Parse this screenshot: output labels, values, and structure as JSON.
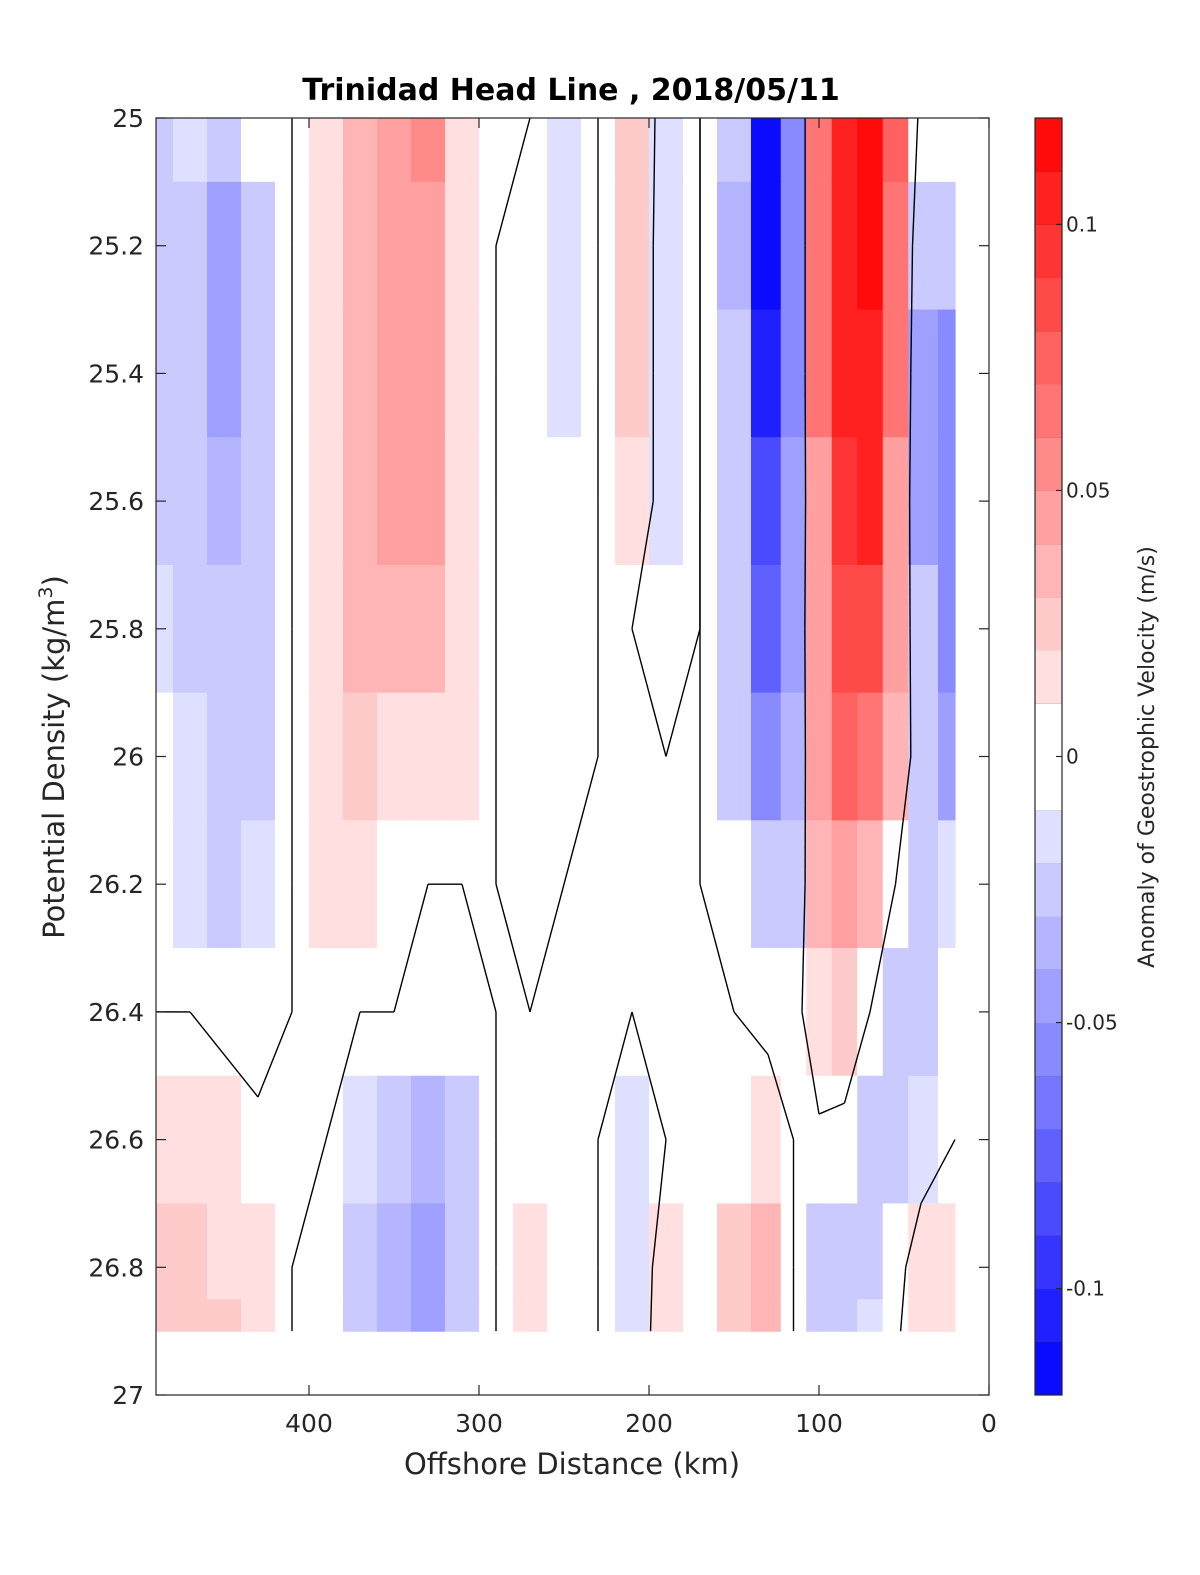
{
  "chart_data": {
    "type": "heatmap",
    "subtype": "filled-contour",
    "title": "Trinidad Head Line , 2018/05/11",
    "xlabel": "Offshore Distance (km)",
    "ylabel_base": "Potential Density (kg/m",
    "ylabel_sup": "3",
    "ylabel_end": ")",
    "colorbar_label": "Anomaly of Geostrophic Velocity (m/s)",
    "xlim": [
      490,
      0
    ],
    "x_reversed": true,
    "ylim": [
      25,
      27
    ],
    "y_reversed": true,
    "x_ticks": [
      {
        "value": 400,
        "label": "400"
      },
      {
        "value": 300,
        "label": "300"
      },
      {
        "value": 200,
        "label": "200"
      },
      {
        "value": 100,
        "label": "100"
      },
      {
        "value": 0,
        "label": "0"
      }
    ],
    "y_ticks": [
      {
        "value": 25,
        "label": "25"
      },
      {
        "value": 25.2,
        "label": "25.2"
      },
      {
        "value": 25.4,
        "label": "25.4"
      },
      {
        "value": 25.6,
        "label": "25.6"
      },
      {
        "value": 25.8,
        "label": "25.8"
      },
      {
        "value": 26,
        "label": "26"
      },
      {
        "value": 26.2,
        "label": "26.2"
      },
      {
        "value": 26.4,
        "label": "26.4"
      },
      {
        "value": 26.6,
        "label": "26.6"
      },
      {
        "value": 26.8,
        "label": "26.8"
      },
      {
        "value": 27,
        "label": "27"
      }
    ],
    "clim": [
      -0.12,
      0.12
    ],
    "colorbar_ticks": [
      {
        "value": 0.1,
        "label": "0.1"
      },
      {
        "value": 0.05,
        "label": "0.05"
      },
      {
        "value": 0,
        "label": "0"
      },
      {
        "value": -0.05,
        "label": "-0.05"
      },
      {
        "value": -0.1,
        "label": "-0.1"
      }
    ],
    "colormap": "blue-white-red",
    "color_negative": "#0000ff",
    "color_zero": "#ffffff",
    "color_positive": "#ff0000",
    "contour_line_color": "#000000",
    "contour_line_level": 0,
    "data_bottom_density": 26.9,
    "data_x_range": [
      490,
      20
    ],
    "grid_x_km": [
      490,
      470,
      450,
      430,
      410,
      390,
      370,
      350,
      330,
      310,
      290,
      270,
      250,
      230,
      210,
      190,
      170,
      150,
      130,
      115,
      100,
      85,
      70,
      55,
      40,
      20
    ],
    "grid_y_density": [
      25.0,
      25.2,
      25.4,
      25.6,
      25.8,
      26.0,
      26.2,
      26.4,
      26.6,
      26.8,
      26.9
    ],
    "grid_values": [
      [
        -0.03,
        -0.015,
        -0.02,
        -0.01,
        0.0,
        0.02,
        0.035,
        0.045,
        0.055,
        0.02,
        0.0,
        0.0,
        -0.012,
        0.0,
        0.025,
        -0.012,
        0.0,
        -0.03,
        -0.11,
        -0.05,
        0.06,
        0.11,
        0.115,
        0.07,
        -0.01,
        0.0
      ],
      [
        -0.02,
        -0.02,
        -0.04,
        -0.03,
        0.0,
        0.02,
        0.035,
        0.045,
        0.05,
        0.02,
        0.0,
        -0.01,
        -0.012,
        0.0,
        0.025,
        -0.015,
        0.0,
        -0.035,
        -0.11,
        -0.05,
        0.06,
        0.11,
        0.115,
        0.06,
        -0.03,
        -0.02
      ],
      [
        -0.02,
        -0.02,
        -0.04,
        -0.03,
        0.0,
        0.02,
        0.035,
        0.045,
        0.05,
        0.02,
        0.0,
        -0.01,
        -0.012,
        0.0,
        0.025,
        -0.015,
        0.0,
        -0.03,
        -0.1,
        -0.05,
        0.06,
        0.1,
        0.105,
        0.06,
        -0.04,
        -0.05
      ],
      [
        -0.02,
        -0.02,
        -0.035,
        -0.025,
        0.0,
        0.02,
        0.03,
        0.045,
        0.04,
        0.02,
        0.0,
        -0.01,
        -0.01,
        0.0,
        0.02,
        -0.012,
        0.0,
        -0.03,
        -0.09,
        -0.045,
        0.05,
        0.095,
        0.1,
        0.05,
        -0.04,
        -0.06
      ],
      [
        -0.015,
        -0.02,
        -0.03,
        -0.02,
        0.0,
        0.015,
        0.03,
        0.035,
        0.03,
        0.015,
        0.0,
        -0.01,
        -0.01,
        0.0,
        0.0,
        -0.01,
        0.0,
        -0.025,
        -0.07,
        -0.04,
        0.05,
        0.085,
        0.08,
        0.04,
        -0.03,
        -0.055
      ],
      [
        -0.01,
        -0.015,
        -0.025,
        -0.02,
        0.0,
        0.015,
        0.025,
        0.02,
        0.015,
        0.01,
        0.0,
        -0.01,
        -0.005,
        0.0,
        0.0,
        0.0,
        0.0,
        -0.02,
        -0.05,
        -0.035,
        0.04,
        0.07,
        0.06,
        0.03,
        -0.02,
        -0.04
      ],
      [
        -0.005,
        -0.012,
        -0.02,
        -0.015,
        0.0,
        0.015,
        0.02,
        0.0,
        0.0,
        0.0,
        0.0,
        -0.005,
        0.0,
        0.0,
        0.0,
        0.0,
        0.0,
        -0.01,
        -0.03,
        -0.025,
        0.03,
        0.04,
        0.03,
        0.0,
        -0.025,
        -0.015
      ],
      [
        0.0,
        0.0,
        -0.005,
        -0.01,
        0.0,
        0.0,
        0.0,
        0.0,
        -0.005,
        -0.005,
        0.0,
        0.0,
        0.0,
        0.0,
        0.0,
        0.0,
        0.0,
        0.0,
        -0.01,
        -0.01,
        0.02,
        0.025,
        0.0,
        -0.02,
        -0.03,
        -0.01
      ],
      [
        0.015,
        0.01,
        0.01,
        0.005,
        0.0,
        0.0,
        -0.015,
        -0.025,
        -0.035,
        -0.02,
        0.0,
        0.0,
        0.0,
        0.0,
        -0.012,
        0.0,
        0.0,
        0.0,
        0.02,
        0.0,
        -0.005,
        -0.01,
        -0.02,
        -0.025,
        -0.015,
        0.0
      ],
      [
        0.025,
        0.025,
        0.02,
        0.02,
        0.0,
        -0.01,
        -0.02,
        -0.035,
        -0.045,
        -0.025,
        0.0,
        0.012,
        0.0,
        0.0,
        -0.015,
        0.01,
        0.0,
        0.025,
        0.035,
        0.0,
        -0.03,
        -0.03,
        -0.02,
        -0.01,
        0.015,
        0.01
      ],
      [
        0.025,
        0.025,
        0.025,
        0.02,
        0.0,
        -0.01,
        -0.02,
        -0.035,
        -0.045,
        -0.025,
        0.0,
        0.012,
        0.0,
        0.0,
        -0.012,
        0.01,
        0.0,
        0.025,
        0.035,
        0.0,
        -0.03,
        -0.03,
        -0.015,
        -0.005,
        0.02,
        0.01
      ]
    ]
  }
}
